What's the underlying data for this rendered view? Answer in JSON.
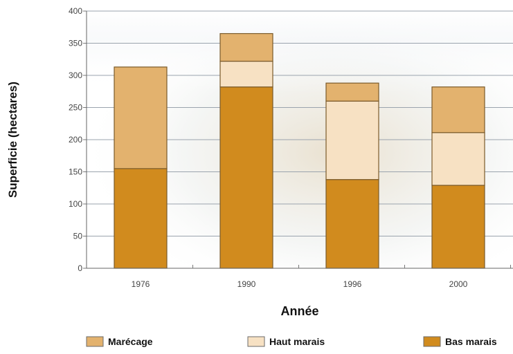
{
  "chart_data": {
    "type": "bar",
    "stacked": true,
    "xlabel": "Année",
    "ylabel": "Superficie (hectares)",
    "categories": [
      "1976",
      "1990",
      "1996",
      "2000"
    ],
    "yticks": [
      0,
      50,
      100,
      150,
      200,
      250,
      300,
      350,
      400
    ],
    "ylim": [
      0,
      400
    ],
    "grid": true,
    "legend_position": "bottom",
    "series": [
      {
        "name": "Bas marais",
        "color": "#D18B1E",
        "values": [
          155,
          282,
          138,
          129
        ]
      },
      {
        "name": "Haut marais",
        "color": "#F7E1C3",
        "values": [
          0,
          40,
          122,
          82
        ]
      },
      {
        "name": "Marécage",
        "color": "#E3B26E",
        "values": [
          158,
          43,
          28,
          71
        ]
      }
    ],
    "legend_order": [
      "Marécage",
      "Haut marais",
      "Bas marais"
    ]
  }
}
